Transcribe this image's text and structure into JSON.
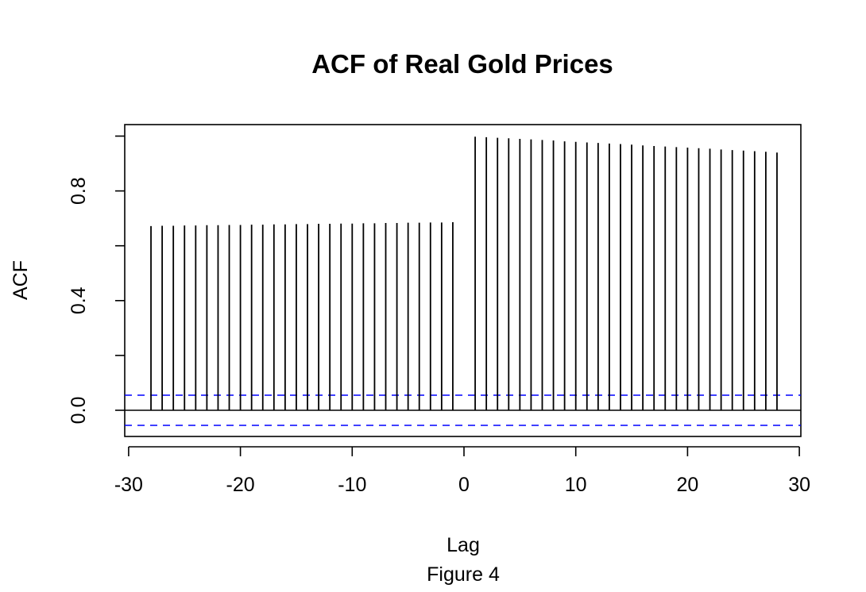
{
  "chart_data": {
    "type": "bar",
    "title": "ACF of Real Gold Prices",
    "xlabel": "Lag",
    "ylabel": "ACF",
    "caption": "Figure 4",
    "xlim": [
      -30,
      30
    ],
    "ylim": [
      -0.1,
      1.0
    ],
    "x_ticks": [
      -30,
      -20,
      -10,
      0,
      10,
      20,
      30
    ],
    "y_ticks": [
      0.0,
      0.2,
      0.4,
      0.6,
      0.8,
      1.0
    ],
    "y_tick_labels": [
      "0.0",
      "",
      "0.4",
      "",
      "0.8",
      ""
    ],
    "ci_bounds": [
      0.055,
      -0.055
    ],
    "ci_color": "#0000ff",
    "spike_color": "#000000",
    "lags": [
      -28,
      -27,
      -26,
      -25,
      -24,
      -23,
      -22,
      -21,
      -20,
      -19,
      -18,
      -17,
      -16,
      -15,
      -14,
      -13,
      -12,
      -11,
      -10,
      -9,
      -8,
      -7,
      -6,
      -5,
      -4,
      -3,
      -2,
      -1,
      1,
      2,
      3,
      4,
      5,
      6,
      7,
      8,
      9,
      10,
      11,
      12,
      13,
      14,
      15,
      16,
      17,
      18,
      19,
      20,
      21,
      22,
      23,
      24,
      25,
      26,
      27,
      28
    ],
    "values": [
      0.672,
      0.673,
      0.673,
      0.674,
      0.674,
      0.675,
      0.675,
      0.676,
      0.676,
      0.677,
      0.677,
      0.678,
      0.678,
      0.679,
      0.679,
      0.68,
      0.68,
      0.681,
      0.681,
      0.682,
      0.682,
      0.683,
      0.683,
      0.684,
      0.684,
      0.685,
      0.685,
      0.686,
      0.998,
      0.996,
      0.994,
      0.992,
      0.99,
      0.988,
      0.986,
      0.984,
      0.981,
      0.979,
      0.977,
      0.975,
      0.973,
      0.971,
      0.969,
      0.966,
      0.964,
      0.962,
      0.96,
      0.958,
      0.956,
      0.954,
      0.951,
      0.949,
      0.947,
      0.945,
      0.943,
      0.94
    ]
  }
}
